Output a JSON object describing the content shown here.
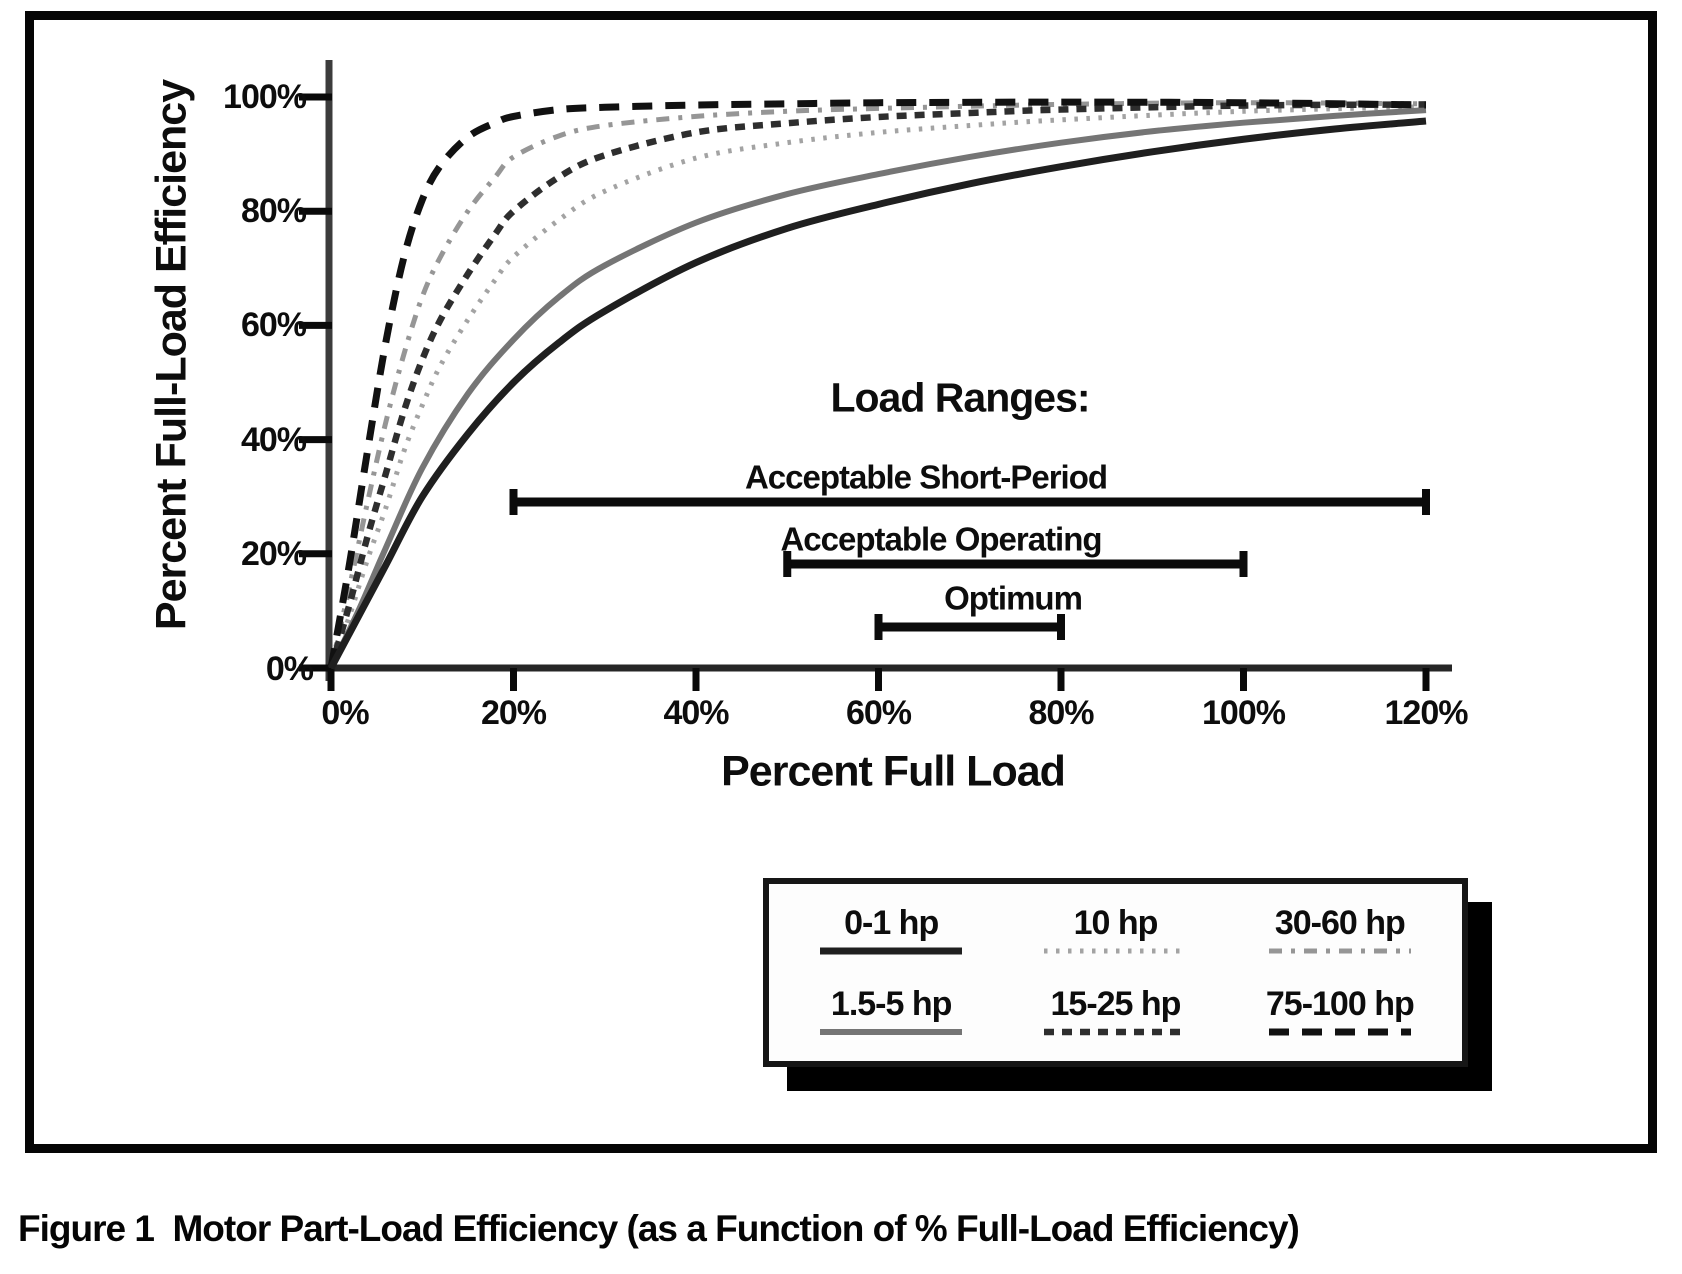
{
  "figure": {
    "caption": "Figure 1  Motor Part-Load Efficiency (as a Function of % Full-Load Efficiency)"
  },
  "chart_data": {
    "type": "line",
    "xlabel": "Percent Full Load",
    "ylabel": "Percent Full-Load Efficiency",
    "xlim": [
      0,
      120
    ],
    "ylim": [
      0,
      100
    ],
    "grid": false,
    "x_ticks": [
      {
        "v": 0,
        "label": "0%"
      },
      {
        "v": 20,
        "label": "20%"
      },
      {
        "v": 40,
        "label": "40%"
      },
      {
        "v": 60,
        "label": "60%"
      },
      {
        "v": 80,
        "label": "80%"
      },
      {
        "v": 100,
        "label": "100%"
      },
      {
        "v": 120,
        "label": "120%"
      }
    ],
    "y_ticks": [
      {
        "v": 0,
        "label": "0%"
      },
      {
        "v": 20,
        "label": "20%"
      },
      {
        "v": 40,
        "label": "40%"
      },
      {
        "v": 60,
        "label": "60%"
      },
      {
        "v": 80,
        "label": "80%"
      },
      {
        "v": 100,
        "label": "100%"
      }
    ],
    "series": [
      {
        "name": "0-1 hp",
        "style": "solid",
        "color": "#1f1f1f",
        "width": 7,
        "dash": "",
        "points": [
          [
            0,
            0
          ],
          [
            3,
            9
          ],
          [
            6,
            18
          ],
          [
            10,
            30
          ],
          [
            15,
            41
          ],
          [
            20,
            50
          ],
          [
            25,
            57
          ],
          [
            30,
            62.5
          ],
          [
            40,
            71
          ],
          [
            50,
            77
          ],
          [
            60,
            81.2
          ],
          [
            70,
            84.8
          ],
          [
            80,
            87.8
          ],
          [
            90,
            90.4
          ],
          [
            100,
            92.6
          ],
          [
            110,
            94.4
          ],
          [
            120,
            95.8
          ]
        ]
      },
      {
        "name": "1.5-5 hp",
        "style": "solid",
        "color": "#757575",
        "width": 6,
        "dash": "",
        "points": [
          [
            0,
            0
          ],
          [
            3,
            10
          ],
          [
            6,
            21
          ],
          [
            10,
            35
          ],
          [
            15,
            48
          ],
          [
            20,
            57.5
          ],
          [
            25,
            65
          ],
          [
            30,
            70.5
          ],
          [
            40,
            78
          ],
          [
            50,
            83
          ],
          [
            60,
            86.5
          ],
          [
            70,
            89.5
          ],
          [
            80,
            92
          ],
          [
            90,
            94
          ],
          [
            100,
            95.5
          ],
          [
            110,
            96.7
          ],
          [
            120,
            97.7
          ]
        ]
      },
      {
        "name": "10 hp",
        "style": "dotted",
        "color": "#a3a3a3",
        "width": 5,
        "dash": "3.5 8.5",
        "points": [
          [
            0,
            0
          ],
          [
            2,
            9
          ],
          [
            4,
            19
          ],
          [
            6,
            28
          ],
          [
            8,
            38
          ],
          [
            10,
            46
          ],
          [
            12,
            53
          ],
          [
            15,
            61
          ],
          [
            18,
            68
          ],
          [
            20,
            72
          ],
          [
            25,
            78.5
          ],
          [
            30,
            83.5
          ],
          [
            40,
            89.3
          ],
          [
            50,
            92
          ],
          [
            60,
            93.8
          ],
          [
            70,
            95
          ],
          [
            80,
            96
          ],
          [
            100,
            97.5
          ],
          [
            120,
            98.3
          ]
        ]
      },
      {
        "name": "15-25 hp",
        "style": "dashed",
        "color": "#2e2e2e",
        "width": 6.5,
        "dash": "10 8",
        "points": [
          [
            0,
            0
          ],
          [
            2,
            11
          ],
          [
            4,
            23
          ],
          [
            6,
            34
          ],
          [
            8,
            45
          ],
          [
            10,
            54
          ],
          [
            12,
            61
          ],
          [
            15,
            69
          ],
          [
            18,
            76
          ],
          [
            20,
            80
          ],
          [
            25,
            86
          ],
          [
            30,
            89.8
          ],
          [
            40,
            93.8
          ],
          [
            50,
            95.4
          ],
          [
            60,
            96.5
          ],
          [
            70,
            97.2
          ],
          [
            80,
            97.8
          ],
          [
            100,
            98.5
          ],
          [
            120,
            98.7
          ]
        ]
      },
      {
        "name": "30-60 hp",
        "style": "dash-dot",
        "color": "#969696",
        "width": 5,
        "dash": "13 9 4 9",
        "points": [
          [
            0,
            0
          ],
          [
            2,
            14
          ],
          [
            4,
            29
          ],
          [
            6,
            43
          ],
          [
            8,
            55
          ],
          [
            10,
            65
          ],
          [
            12,
            72
          ],
          [
            15,
            80
          ],
          [
            18,
            86
          ],
          [
            20,
            89.5
          ],
          [
            25,
            93.2
          ],
          [
            30,
            95
          ],
          [
            40,
            96.6
          ],
          [
            50,
            97.5
          ],
          [
            60,
            98
          ],
          [
            80,
            98.7
          ],
          [
            100,
            99
          ],
          [
            120,
            98.8
          ]
        ]
      },
      {
        "name": "75-100 hp",
        "style": "dashed",
        "color": "#111111",
        "width": 7,
        "dash": "20 13",
        "points": [
          [
            0,
            0
          ],
          [
            2,
            18
          ],
          [
            4,
            38
          ],
          [
            6,
            57
          ],
          [
            8,
            72
          ],
          [
            10,
            82
          ],
          [
            12,
            88
          ],
          [
            15,
            93
          ],
          [
            18,
            95.5
          ],
          [
            20,
            96.6
          ],
          [
            25,
            97.8
          ],
          [
            30,
            98.2
          ],
          [
            40,
            98.6
          ],
          [
            50,
            98.8
          ],
          [
            60,
            99
          ],
          [
            80,
            99.1
          ],
          [
            100,
            99
          ],
          [
            120,
            98.6
          ]
        ]
      }
    ],
    "annotations": {
      "title": "Load Ranges:",
      "ranges": [
        {
          "label": "Acceptable Short-Period",
          "from": 20,
          "to": 120
        },
        {
          "label": "Acceptable Operating",
          "from": 50,
          "to": 100
        },
        {
          "label": "Optimum",
          "from": 60,
          "to": 80
        }
      ]
    },
    "legend_position": "bottom-right-box"
  },
  "legend": {
    "items": [
      {
        "label": "0-1 hp",
        "series": "0-1 hp"
      },
      {
        "label": "10 hp",
        "series": "10 hp"
      },
      {
        "label": "30-60 hp",
        "series": "30-60 hp"
      },
      {
        "label": "1.5-5 hp",
        "series": "1.5-5 hp"
      },
      {
        "label": "15-25 hp",
        "series": "15-25 hp"
      },
      {
        "label": "75-100 hp",
        "series": "75-100 hp"
      }
    ]
  }
}
